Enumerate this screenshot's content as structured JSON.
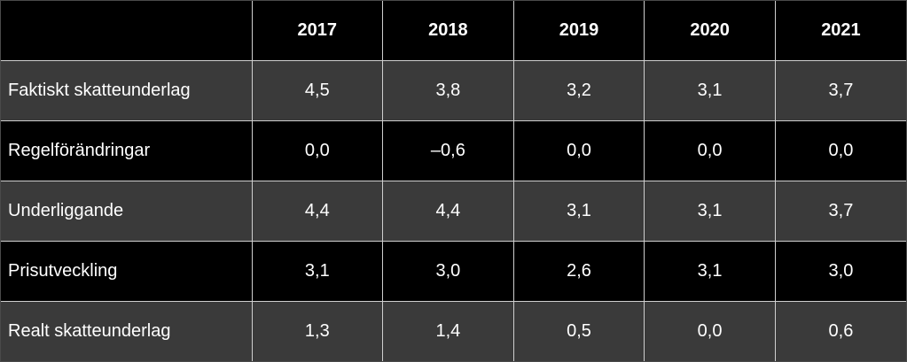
{
  "table": {
    "header": {
      "label": "",
      "years": [
        "2017",
        "2018",
        "2019",
        "2020",
        "2021"
      ]
    },
    "rows": [
      {
        "label": "Faktiskt skatteunderlag",
        "values": [
          "4,5",
          "3,8",
          "3,2",
          "3,1",
          "3,7"
        ]
      },
      {
        "label": "Regelförändringar",
        "values": [
          "0,0",
          "–0,6",
          "0,0",
          "0,0",
          "0,0"
        ]
      },
      {
        "label": "Underliggande",
        "values": [
          "4,4",
          "4,4",
          "3,1",
          "3,1",
          "3,7"
        ]
      },
      {
        "label": "Prisutveckling",
        "values": [
          "3,1",
          "3,0",
          "2,6",
          "3,1",
          "3,0"
        ]
      },
      {
        "label": "Realt skatteunderlag",
        "values": [
          "1,3",
          "1,4",
          "0,5",
          "0,0",
          "0,6"
        ]
      }
    ],
    "colors": {
      "header_bg": "#000000",
      "row_gray": "#3a3a3a",
      "row_black": "#000000",
      "text": "#ffffff",
      "grid": "#cfcfcf"
    }
  }
}
